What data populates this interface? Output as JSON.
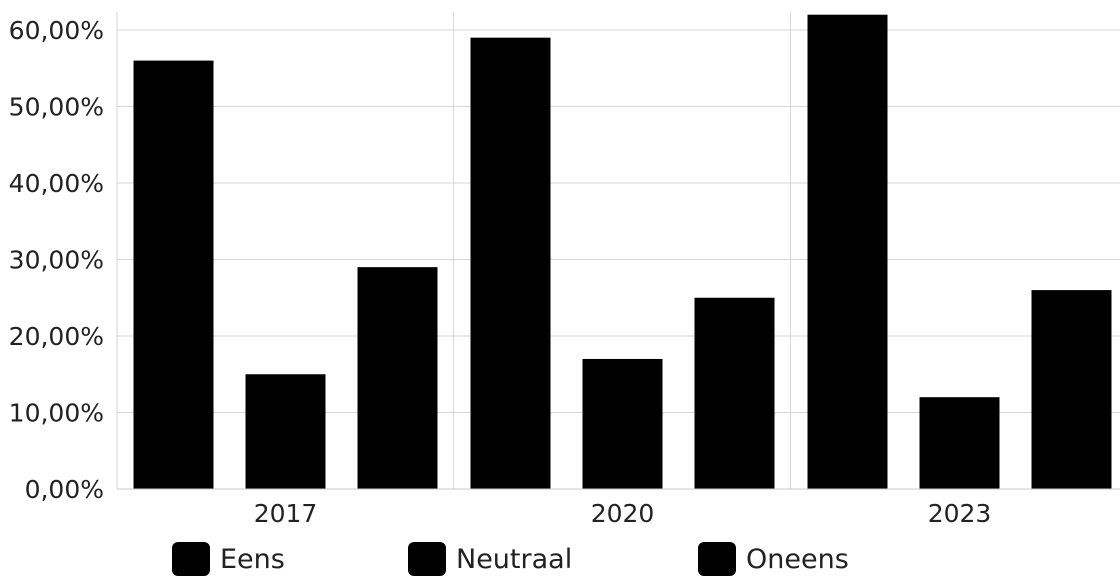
{
  "chart_data": {
    "type": "bar",
    "categories": [
      "2017",
      "2020",
      "2023"
    ],
    "series": [
      {
        "name": "Eens",
        "values": [
          56,
          59,
          62
        ],
        "color": "#000000"
      },
      {
        "name": "Neutraal",
        "values": [
          15,
          17,
          12
        ],
        "color": "#000000"
      },
      {
        "name": "Oneens",
        "values": [
          29,
          25,
          26
        ],
        "color": "#000000"
      }
    ],
    "y_ticks": [
      "0,00%",
      "10,00%",
      "20,00%",
      "30,00%",
      "40,00%",
      "50,00%",
      "60,00%"
    ],
    "ylim": [
      0,
      62
    ],
    "grid": true,
    "legend_position": "bottom"
  }
}
